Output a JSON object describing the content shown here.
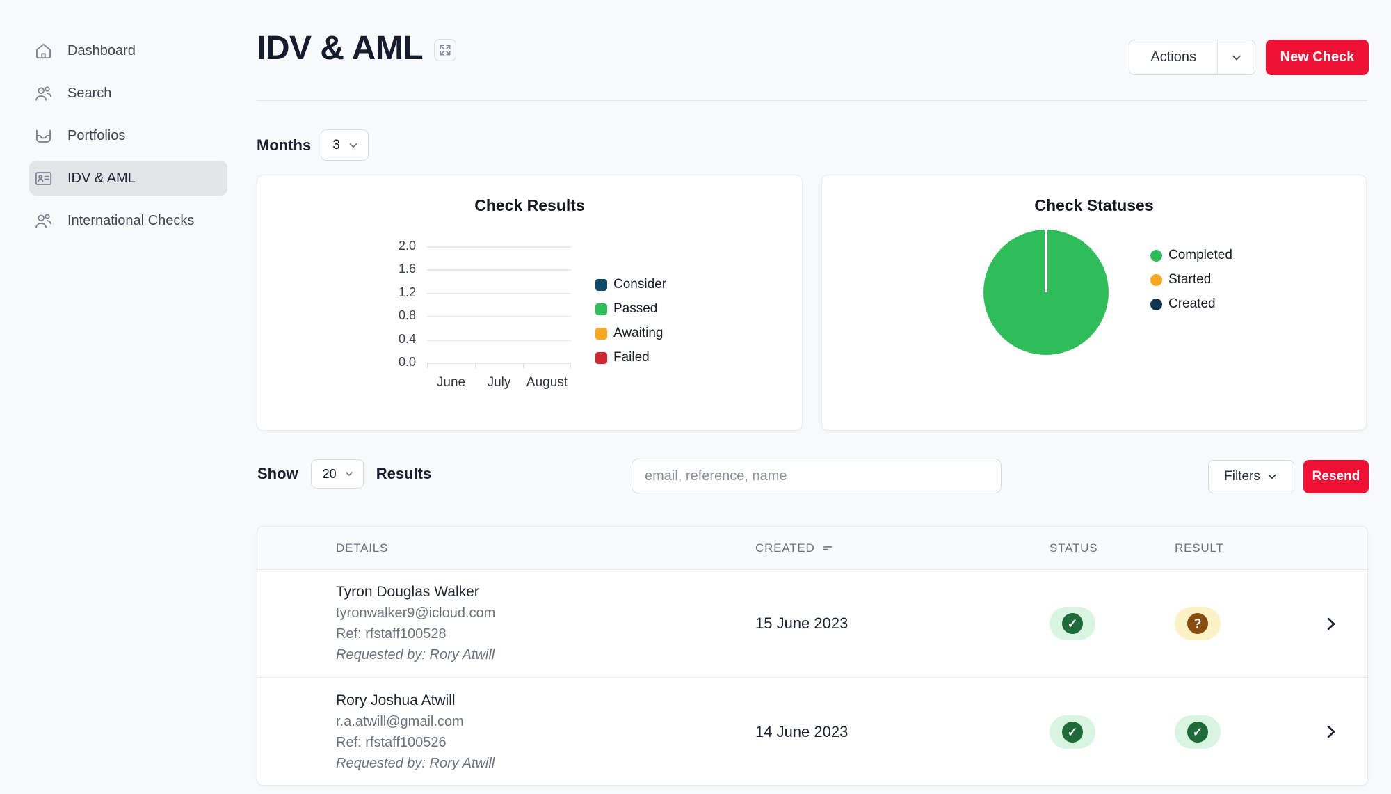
{
  "theme": {
    "accent_red": "#ee1133",
    "page_bg": "#f8f9fa",
    "status_passed_bg": "#d9f4e1",
    "status_passed_dot": "#1e6b39",
    "result_consider_bg": "#fdf2c6",
    "result_consider_dot": "#8a4d10"
  },
  "sidebar": {
    "items": [
      {
        "label": "Dashboard",
        "icon": "home",
        "active": false
      },
      {
        "label": "Search",
        "icon": "users",
        "active": false
      },
      {
        "label": "Portfolios",
        "icon": "inbox",
        "active": false
      },
      {
        "label": "IDV & AML",
        "icon": "id-card",
        "active": true
      },
      {
        "label": "International Checks",
        "icon": "users",
        "active": false
      }
    ]
  },
  "header": {
    "title": "IDV & AML",
    "actions_label": "Actions",
    "new_check_label": "New Check"
  },
  "months": {
    "label": "Months",
    "value": "3"
  },
  "chart_data": [
    {
      "type": "bar",
      "title": "Check Results",
      "categories": [
        "June",
        "July",
        "August"
      ],
      "series": [
        {
          "name": "Consider",
          "color": "#0e4a66",
          "values": [
            0,
            0,
            0
          ]
        },
        {
          "name": "Passed",
          "color": "#2ebd59",
          "values": [
            0,
            0,
            0
          ]
        },
        {
          "name": "Awaiting",
          "color": "#f7a823",
          "values": [
            0,
            0,
            0
          ]
        },
        {
          "name": "Failed",
          "color": "#cc2630",
          "values": [
            0,
            0,
            0
          ]
        }
      ],
      "ylim": [
        0.0,
        2.0
      ],
      "yticks": [
        "0.0",
        "0.4",
        "0.8",
        "1.2",
        "1.6",
        "2.0"
      ],
      "grid": true,
      "legend_position": "right"
    },
    {
      "type": "pie",
      "title": "Check Statuses",
      "slices": [
        {
          "name": "Completed",
          "color": "#2ebd59",
          "value": 100
        },
        {
          "name": "Started",
          "color": "#f7a823",
          "value": 0
        },
        {
          "name": "Created",
          "color": "#10374f",
          "value": 0
        }
      ],
      "legend_position": "right"
    }
  ],
  "results_bar": {
    "show_label": "Show",
    "show_value": "20",
    "results_label": "Results",
    "search_placeholder": "email, reference, name",
    "filters_label": "Filters",
    "resend_label": "Resend"
  },
  "table": {
    "columns": [
      "DETAILS",
      "CREATED",
      "STATUS",
      "RESULT"
    ],
    "rows": [
      {
        "name": "Tyron Douglas Walker",
        "email": "tyronwalker9@icloud.com",
        "ref": "Ref: rfstaff100528",
        "requested_by": "Requested by: Rory Atwill",
        "created": "15 June 2023",
        "status": "passed",
        "result": "consider"
      },
      {
        "name": "Rory Joshua Atwill",
        "email": "r.a.atwill@gmail.com",
        "ref": "Ref: rfstaff100526",
        "requested_by": "Requested by: Rory Atwill",
        "created": "14 June 2023",
        "status": "passed",
        "result": "passed"
      }
    ]
  }
}
